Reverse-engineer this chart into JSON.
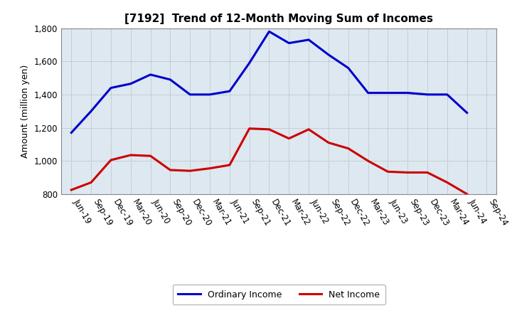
{
  "title": "[7192]  Trend of 12-Month Moving Sum of Incomes",
  "ylabel": "Amount (million yen)",
  "ylim": [
    800,
    1800
  ],
  "yticks": [
    800,
    1000,
    1200,
    1400,
    1600,
    1800
  ],
  "background_color": "#ffffff",
  "plot_bg_color": "#dde8f0",
  "grid_color": "#999999",
  "ordinary_income_color": "#0000cc",
  "net_income_color": "#cc0000",
  "line_width": 2.2,
  "x_labels": [
    "Jun-19",
    "Sep-19",
    "Dec-19",
    "Mar-20",
    "Jun-20",
    "Sep-20",
    "Dec-20",
    "Mar-21",
    "Jun-21",
    "Sep-21",
    "Dec-21",
    "Mar-22",
    "Jun-22",
    "Sep-22",
    "Dec-22",
    "Mar-23",
    "Jun-23",
    "Sep-23",
    "Dec-23",
    "Mar-24",
    "Jun-24",
    "Sep-24"
  ],
  "ordinary_income": [
    1170,
    1300,
    1440,
    1465,
    1520,
    1490,
    1400,
    1400,
    1420,
    1590,
    1780,
    1710,
    1730,
    1640,
    1560,
    1410,
    1410,
    1410,
    1400,
    1400,
    1290,
    null
  ],
  "net_income": [
    825,
    870,
    1005,
    1035,
    1030,
    945,
    940,
    955,
    975,
    1195,
    1190,
    1135,
    1190,
    1110,
    1075,
    1000,
    935,
    930,
    930,
    870,
    800,
    null
  ],
  "legend_labels": [
    "Ordinary Income",
    "Net Income"
  ],
  "title_fontsize": 11,
  "axis_label_fontsize": 9,
  "tick_fontsize": 8.5
}
